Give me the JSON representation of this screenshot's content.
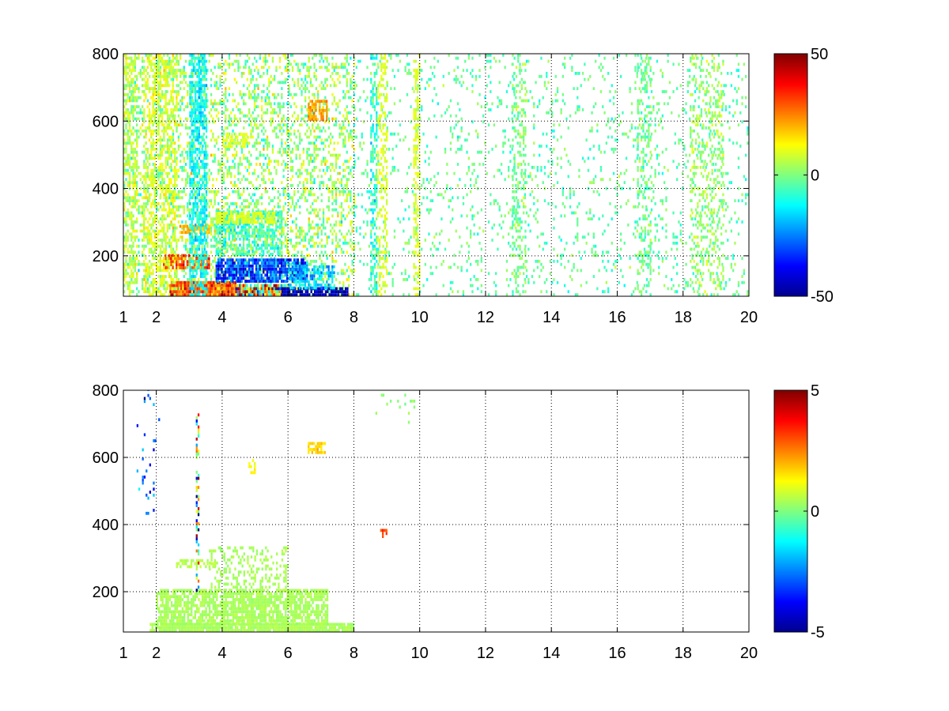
{
  "chart_data": [
    {
      "type": "heatmap",
      "xlim": [
        1,
        20
      ],
      "ylim": [
        80,
        800
      ],
      "x_ticks": [
        1,
        2,
        4,
        6,
        8,
        10,
        12,
        14,
        16,
        18,
        20
      ],
      "x_tick_labels": [
        "1",
        "2",
        "4",
        "6",
        "8",
        "10",
        "12",
        "14",
        "16",
        "18",
        "20"
      ],
      "y_ticks": [
        200,
        400,
        600,
        800
      ],
      "y_tick_labels": [
        "200",
        "400",
        "600",
        "800"
      ],
      "grid": true,
      "colormap": "jet",
      "clim": [
        -50,
        50
      ],
      "colorbar": {
        "ticks": [
          -50,
          0,
          50
        ],
        "tick_labels": [
          "-50",
          "0",
          "50"
        ]
      },
      "regions": [
        {
          "x0": 1.0,
          "x1": 8.0,
          "y0": 80,
          "y1": 800,
          "density": 0.3,
          "mean": 2,
          "spread": 10
        },
        {
          "x0": 2.4,
          "x1": 4.4,
          "y0": 80,
          "y1": 120,
          "density": 0.95,
          "mean": 30,
          "spread": 12
        },
        {
          "x0": 4.4,
          "x1": 6.0,
          "y0": 80,
          "y1": 110,
          "density": 0.95,
          "mean": 10,
          "spread": 35
        },
        {
          "x0": 5.8,
          "x1": 7.8,
          "y0": 80,
          "y1": 100,
          "density": 0.9,
          "mean": -45,
          "spread": 6
        },
        {
          "x0": 3.8,
          "x1": 6.6,
          "y0": 120,
          "y1": 190,
          "density": 0.85,
          "mean": -30,
          "spread": 12
        },
        {
          "x0": 6.0,
          "x1": 7.4,
          "y0": 100,
          "y1": 170,
          "density": 0.6,
          "mean": -18,
          "spread": 8
        },
        {
          "x0": 2.2,
          "x1": 3.6,
          "y0": 160,
          "y1": 200,
          "density": 0.8,
          "mean": 28,
          "spread": 10
        },
        {
          "x0": 3.8,
          "x1": 5.8,
          "y0": 200,
          "y1": 330,
          "density": 0.55,
          "mean": -6,
          "spread": 8
        },
        {
          "x0": 3.8,
          "x1": 5.6,
          "y0": 295,
          "y1": 330,
          "density": 0.7,
          "mean": 9,
          "spread": 3
        },
        {
          "x0": 2.7,
          "x1": 3.6,
          "y0": 265,
          "y1": 290,
          "density": 0.8,
          "mean": 20,
          "spread": 4
        },
        {
          "x0": 3.0,
          "x1": 3.5,
          "y0": 80,
          "y1": 800,
          "density": 0.6,
          "mean": -12,
          "spread": 6
        },
        {
          "x0": 1.0,
          "x1": 1.4,
          "y0": 80,
          "y1": 800,
          "density": 0.45,
          "mean": 6,
          "spread": 6
        },
        {
          "x0": 1.6,
          "x1": 2.6,
          "y0": 80,
          "y1": 800,
          "density": 0.4,
          "mean": 9,
          "spread": 5
        },
        {
          "x0": 6.6,
          "x1": 7.2,
          "y0": 600,
          "y1": 660,
          "density": 0.8,
          "mean": 22,
          "spread": 4
        },
        {
          "x0": 4.0,
          "x1": 4.8,
          "y0": 520,
          "y1": 560,
          "density": 0.6,
          "mean": 9,
          "spread": 3
        },
        {
          "x0": 8.0,
          "x1": 20.0,
          "y0": 80,
          "y1": 800,
          "density": 0.09,
          "mean": -3,
          "spread": 6
        },
        {
          "x0": 8.5,
          "x1": 8.7,
          "y0": 80,
          "y1": 800,
          "density": 0.45,
          "mean": -8,
          "spread": 8
        },
        {
          "x0": 8.7,
          "x1": 9.0,
          "y0": 80,
          "y1": 800,
          "density": 0.35,
          "mean": 9,
          "spread": 3
        },
        {
          "x0": 9.8,
          "x1": 10.0,
          "y0": 80,
          "y1": 800,
          "density": 0.4,
          "mean": 9,
          "spread": 3
        },
        {
          "x0": 12.8,
          "x1": 13.2,
          "y0": 80,
          "y1": 800,
          "density": 0.3,
          "mean": 0,
          "spread": 6
        },
        {
          "x0": 16.6,
          "x1": 17.0,
          "y0": 80,
          "y1": 800,
          "density": 0.3,
          "mean": -2,
          "spread": 6
        },
        {
          "x0": 18.2,
          "x1": 19.2,
          "y0": 80,
          "y1": 800,
          "density": 0.25,
          "mean": 3,
          "spread": 6
        }
      ]
    },
    {
      "type": "heatmap",
      "xlim": [
        1,
        20
      ],
      "ylim": [
        80,
        800
      ],
      "x_ticks": [
        1,
        2,
        4,
        6,
        8,
        10,
        12,
        14,
        16,
        18,
        20
      ],
      "x_tick_labels": [
        "1",
        "2",
        "4",
        "6",
        "8",
        "10",
        "12",
        "14",
        "16",
        "18",
        "20"
      ],
      "y_ticks": [
        200,
        400,
        600,
        800
      ],
      "y_tick_labels": [
        "200",
        "400",
        "600",
        "800"
      ],
      "grid": true,
      "colormap": "jet",
      "clim": [
        -5,
        5
      ],
      "colorbar": {
        "ticks": [
          -5,
          0,
          5
        ],
        "tick_labels": [
          "-5",
          "0",
          "5"
        ]
      },
      "regions": [
        {
          "x0": 1.8,
          "x1": 8.0,
          "y0": 80,
          "y1": 100,
          "density": 0.95,
          "mean": 0.4,
          "spread": 0.15
        },
        {
          "x0": 2.0,
          "x1": 7.2,
          "y0": 100,
          "y1": 200,
          "density": 0.75,
          "mean": 0.4,
          "spread": 0.15
        },
        {
          "x0": 3.6,
          "x1": 6.0,
          "y0": 200,
          "y1": 330,
          "density": 0.3,
          "mean": 0.4,
          "spread": 0.15
        },
        {
          "x0": 2.6,
          "x1": 3.8,
          "y0": 270,
          "y1": 290,
          "density": 0.6,
          "mean": 0.5,
          "spread": 0.2
        },
        {
          "x0": 3.2,
          "x1": 3.3,
          "y0": 200,
          "y1": 730,
          "density": 0.45,
          "mean": 0,
          "spread": 4
        },
        {
          "x0": 1.4,
          "x1": 2.1,
          "y0": 420,
          "y1": 800,
          "density": 0.04,
          "mean": -3,
          "spread": 1.5
        },
        {
          "x0": 6.6,
          "x1": 7.1,
          "y0": 610,
          "y1": 640,
          "density": 0.6,
          "mean": 1.6,
          "spread": 0.3
        },
        {
          "x0": 4.8,
          "x1": 5.0,
          "y0": 550,
          "y1": 590,
          "density": 0.5,
          "mean": 1.3,
          "spread": 0.3
        },
        {
          "x0": 8.8,
          "x1": 9.0,
          "y0": 360,
          "y1": 380,
          "density": 0.5,
          "mean": 3,
          "spread": 0.3
        },
        {
          "x0": 8.6,
          "x1": 10.0,
          "y0": 700,
          "y1": 790,
          "density": 0.04,
          "mean": 0.2,
          "spread": 0.3
        }
      ]
    }
  ]
}
